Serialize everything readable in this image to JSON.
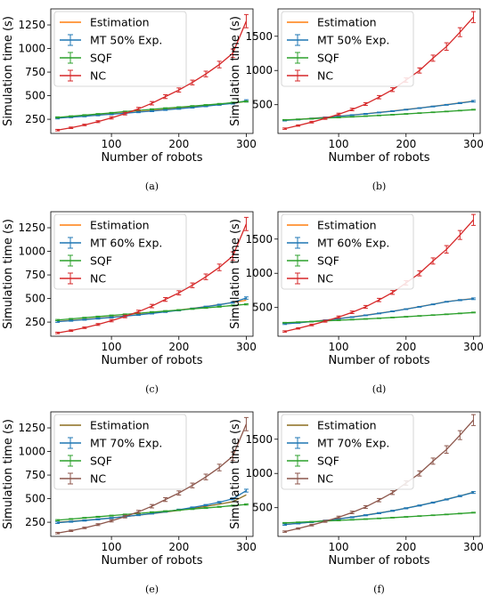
{
  "figure": {
    "captions": [
      "(a)",
      "(b)",
      "(c)",
      "(d)",
      "(e)",
      "(f)"
    ]
  },
  "chart_data": [
    {
      "type": "line",
      "panel": "a",
      "xlabel": "Number of robots",
      "ylabel": "Simulation time (s)",
      "xlim": [
        10,
        310
      ],
      "ylim": [
        100,
        1420
      ],
      "xticks": [
        100,
        200,
        300
      ],
      "yticks": [
        250,
        500,
        750,
        1000,
        1250
      ],
      "legend": "top-left",
      "x": [
        20,
        40,
        60,
        80,
        100,
        120,
        140,
        160,
        180,
        200,
        220,
        240,
        260,
        280,
        300
      ],
      "series": [
        {
          "name": "Estimation",
          "color": "#ff7f0e",
          "values": [
            265,
            275,
            285,
            296,
            307,
            318,
            330,
            342,
            354,
            367,
            380,
            394,
            408,
            423,
            438
          ]
        },
        {
          "name": "MT 50% Exp.",
          "color": "#1f77b4",
          "values": [
            262,
            272,
            282,
            293,
            304,
            314,
            326,
            337,
            350,
            362,
            375,
            389,
            404,
            419,
            445
          ],
          "errors": [
            8,
            6,
            6,
            6,
            6,
            6,
            6,
            6,
            6,
            6,
            6,
            6,
            6,
            8,
            12
          ]
        },
        {
          "name": "SQF",
          "color": "#2ca02c",
          "values": [
            270,
            282,
            294,
            306,
            318,
            332,
            344,
            356,
            367,
            378,
            390,
            401,
            413,
            426,
            439
          ],
          "errors": [
            6,
            5,
            5,
            5,
            5,
            5,
            5,
            5,
            5,
            5,
            5,
            5,
            5,
            5,
            6
          ]
        },
        {
          "name": "NC",
          "color": "#d62728",
          "values": [
            135,
            160,
            190,
            225,
            265,
            310,
            360,
            420,
            490,
            560,
            640,
            730,
            830,
            950,
            1290
          ],
          "errors": [
            8,
            8,
            8,
            10,
            12,
            14,
            16,
            18,
            20,
            22,
            25,
            30,
            35,
            45,
            70
          ]
        }
      ]
    },
    {
      "type": "line",
      "panel": "b",
      "xlabel": "Number of robots",
      "ylabel": "Simulation time (s)",
      "xlim": [
        10,
        310
      ],
      "ylim": [
        80,
        1900
      ],
      "xticks": [
        100,
        200,
        300
      ],
      "yticks": [
        500,
        1000,
        1500
      ],
      "legend": "top-left",
      "x": [
        20,
        40,
        60,
        80,
        100,
        120,
        140,
        160,
        180,
        200,
        220,
        240,
        260,
        280,
        300
      ],
      "series": [
        {
          "name": "Estimation",
          "color": "#ff7f0e",
          "values": [
            272,
            285,
            300,
            316,
            332,
            350,
            368,
            388,
            408,
            430,
            452,
            476,
            500,
            526,
            552
          ]
        },
        {
          "name": "MT 50% Exp.",
          "color": "#1f77b4",
          "values": [
            270,
            283,
            298,
            314,
            330,
            348,
            366,
            386,
            406,
            428,
            450,
            474,
            498,
            524,
            550
          ],
          "errors": [
            8,
            6,
            6,
            6,
            6,
            6,
            6,
            6,
            6,
            6,
            6,
            6,
            6,
            8,
            12
          ]
        },
        {
          "name": "SQF",
          "color": "#2ca02c",
          "values": [
            278,
            286,
            295,
            304,
            313,
            323,
            333,
            343,
            354,
            365,
            377,
            389,
            401,
            414,
            427
          ],
          "errors": [
            5,
            5,
            5,
            5,
            5,
            5,
            5,
            5,
            5,
            5,
            5,
            5,
            5,
            5,
            6
          ]
        },
        {
          "name": "NC",
          "color": "#d62728",
          "values": [
            150,
            195,
            245,
            300,
            360,
            430,
            510,
            610,
            720,
            860,
            1000,
            1180,
            1350,
            1560,
            1780
          ],
          "errors": [
            10,
            10,
            12,
            14,
            16,
            18,
            20,
            24,
            28,
            32,
            38,
            45,
            55,
            65,
            80
          ]
        }
      ]
    },
    {
      "type": "line",
      "panel": "c",
      "xlabel": "Number of robots",
      "ylabel": "Simulation time (s)",
      "xlim": [
        10,
        310
      ],
      "ylim": [
        100,
        1420
      ],
      "xticks": [
        100,
        200,
        300
      ],
      "yticks": [
        250,
        500,
        750,
        1000,
        1250
      ],
      "legend": "top-left",
      "x": [
        20,
        40,
        60,
        80,
        100,
        120,
        140,
        160,
        180,
        200,
        220,
        240,
        260,
        280,
        300
      ],
      "series": [
        {
          "name": "Estimation",
          "color": "#ff7f0e",
          "values": [
            258,
            268,
            279,
            291,
            303,
            316,
            330,
            345,
            361,
            378,
            396,
            415,
            436,
            458,
            482
          ]
        },
        {
          "name": "MT 60% Exp.",
          "color": "#1f77b4",
          "values": [
            255,
            265,
            276,
            288,
            300,
            313,
            327,
            342,
            358,
            375,
            393,
            413,
            434,
            458,
            505
          ],
          "errors": [
            8,
            6,
            6,
            6,
            6,
            6,
            6,
            6,
            6,
            6,
            6,
            6,
            6,
            8,
            12
          ]
        },
        {
          "name": "SQF",
          "color": "#2ca02c",
          "values": [
            272,
            284,
            296,
            308,
            320,
            332,
            344,
            356,
            367,
            378,
            390,
            401,
            413,
            426,
            438
          ],
          "errors": [
            6,
            5,
            5,
            5,
            5,
            5,
            5,
            5,
            5,
            5,
            5,
            5,
            5,
            5,
            6
          ]
        },
        {
          "name": "NC",
          "color": "#d62728",
          "values": [
            135,
            160,
            190,
            225,
            265,
            310,
            360,
            420,
            490,
            560,
            640,
            730,
            830,
            950,
            1290
          ],
          "errors": [
            8,
            8,
            8,
            10,
            12,
            14,
            16,
            18,
            20,
            22,
            25,
            30,
            35,
            45,
            70
          ]
        }
      ]
    },
    {
      "type": "line",
      "panel": "d",
      "xlabel": "Number of robots",
      "ylabel": "Simulation time (s)",
      "xlim": [
        10,
        310
      ],
      "ylim": [
        80,
        1900
      ],
      "xticks": [
        100,
        200,
        300
      ],
      "yticks": [
        500,
        1000,
        1500
      ],
      "legend": "top-left",
      "x": [
        20,
        40,
        60,
        80,
        100,
        120,
        140,
        160,
        180,
        200,
        220,
        240,
        260,
        280,
        300
      ],
      "series": [
        {
          "name": "Estimation",
          "color": "#ff7f0e",
          "values": [
            262,
            278,
            296,
            316,
            338,
            362,
            388,
            416,
            446,
            478,
            512,
            548,
            586,
            610,
            630
          ]
        },
        {
          "name": "MT 60% Exp.",
          "color": "#1f77b4",
          "values": [
            260,
            276,
            294,
            314,
            336,
            360,
            386,
            414,
            444,
            476,
            510,
            546,
            584,
            608,
            628
          ],
          "errors": [
            8,
            6,
            6,
            6,
            6,
            6,
            6,
            6,
            6,
            6,
            6,
            6,
            6,
            8,
            12
          ]
        },
        {
          "name": "SQF",
          "color": "#2ca02c",
          "values": [
            278,
            286,
            295,
            304,
            313,
            323,
            333,
            343,
            354,
            365,
            377,
            389,
            401,
            414,
            427
          ],
          "errors": [
            5,
            5,
            5,
            5,
            5,
            5,
            5,
            5,
            5,
            5,
            5,
            5,
            5,
            5,
            6
          ]
        },
        {
          "name": "NC",
          "color": "#d62728",
          "values": [
            150,
            195,
            245,
            300,
            360,
            430,
            510,
            610,
            720,
            860,
            1000,
            1180,
            1350,
            1560,
            1780
          ],
          "errors": [
            10,
            10,
            12,
            14,
            16,
            18,
            20,
            24,
            28,
            32,
            38,
            45,
            55,
            65,
            80
          ]
        }
      ]
    },
    {
      "type": "line",
      "panel": "e",
      "xlabel": "Number of robots",
      "ylabel": "Simulation time (s)",
      "xlim": [
        10,
        310
      ],
      "ylim": [
        100,
        1420
      ],
      "xticks": [
        100,
        200,
        300
      ],
      "yticks": [
        250,
        500,
        750,
        1000,
        1250
      ],
      "legend": "top-left",
      "x": [
        20,
        40,
        60,
        80,
        100,
        120,
        140,
        160,
        180,
        200,
        220,
        240,
        260,
        280,
        300
      ],
      "series": [
        {
          "name": "Estimation",
          "color": "#8c6d1f",
          "values": [
            250,
            260,
            271,
            283,
            296,
            310,
            325,
            341,
            358,
            376,
            396,
            418,
            442,
            468,
            540
          ]
        },
        {
          "name": "MT 70% Exp.",
          "color": "#1f77b4",
          "values": [
            245,
            256,
            268,
            281,
            295,
            310,
            326,
            343,
            362,
            383,
            406,
            432,
            462,
            498,
            585
          ],
          "errors": [
            8,
            6,
            6,
            6,
            6,
            6,
            6,
            6,
            6,
            6,
            6,
            6,
            8,
            10,
            15
          ]
        },
        {
          "name": "SQF",
          "color": "#2ca02c",
          "values": [
            272,
            284,
            296,
            308,
            320,
            332,
            344,
            356,
            367,
            378,
            390,
            401,
            413,
            426,
            438
          ],
          "errors": [
            6,
            5,
            5,
            5,
            5,
            5,
            5,
            5,
            5,
            5,
            5,
            5,
            5,
            5,
            6
          ]
        },
        {
          "name": "NC",
          "color": "#8c564b",
          "values": [
            135,
            160,
            190,
            225,
            265,
            310,
            360,
            420,
            490,
            560,
            640,
            730,
            830,
            950,
            1290
          ],
          "errors": [
            8,
            8,
            8,
            10,
            12,
            14,
            16,
            18,
            20,
            22,
            25,
            30,
            35,
            45,
            70
          ]
        }
      ]
    },
    {
      "type": "line",
      "panel": "f",
      "xlabel": "Number of robots",
      "ylabel": "Simulation time (s)",
      "xlim": [
        10,
        310
      ],
      "ylim": [
        80,
        1900
      ],
      "xticks": [
        100,
        200,
        300
      ],
      "yticks": [
        500,
        1000,
        1500
      ],
      "legend": "top-left",
      "x": [
        20,
        40,
        60,
        80,
        100,
        120,
        140,
        160,
        180,
        200,
        220,
        240,
        260,
        280,
        300
      ],
      "series": [
        {
          "name": "Estimation",
          "color": "#8c6d1f",
          "values": [
            255,
            272,
            291,
            312,
            336,
            362,
            391,
            422,
            456,
            493,
            533,
            576,
            622,
            672,
            725
          ]
        },
        {
          "name": "MT 70% Exp.",
          "color": "#1f77b4",
          "values": [
            252,
            270,
            289,
            310,
            334,
            360,
            389,
            420,
            454,
            491,
            531,
            574,
            620,
            670,
            722
          ],
          "errors": [
            10,
            8,
            8,
            8,
            8,
            8,
            8,
            8,
            8,
            8,
            8,
            8,
            8,
            10,
            14
          ]
        },
        {
          "name": "SQF",
          "color": "#2ca02c",
          "values": [
            278,
            286,
            295,
            304,
            313,
            323,
            333,
            343,
            354,
            365,
            377,
            389,
            401,
            414,
            427
          ],
          "errors": [
            5,
            5,
            5,
            5,
            5,
            5,
            5,
            5,
            5,
            5,
            5,
            5,
            5,
            5,
            6
          ]
        },
        {
          "name": "NC",
          "color": "#8c564b",
          "values": [
            150,
            195,
            245,
            300,
            360,
            430,
            510,
            610,
            720,
            860,
            1000,
            1180,
            1350,
            1560,
            1780
          ],
          "errors": [
            10,
            10,
            12,
            14,
            16,
            18,
            20,
            24,
            28,
            32,
            38,
            45,
            55,
            65,
            80
          ]
        }
      ]
    }
  ]
}
